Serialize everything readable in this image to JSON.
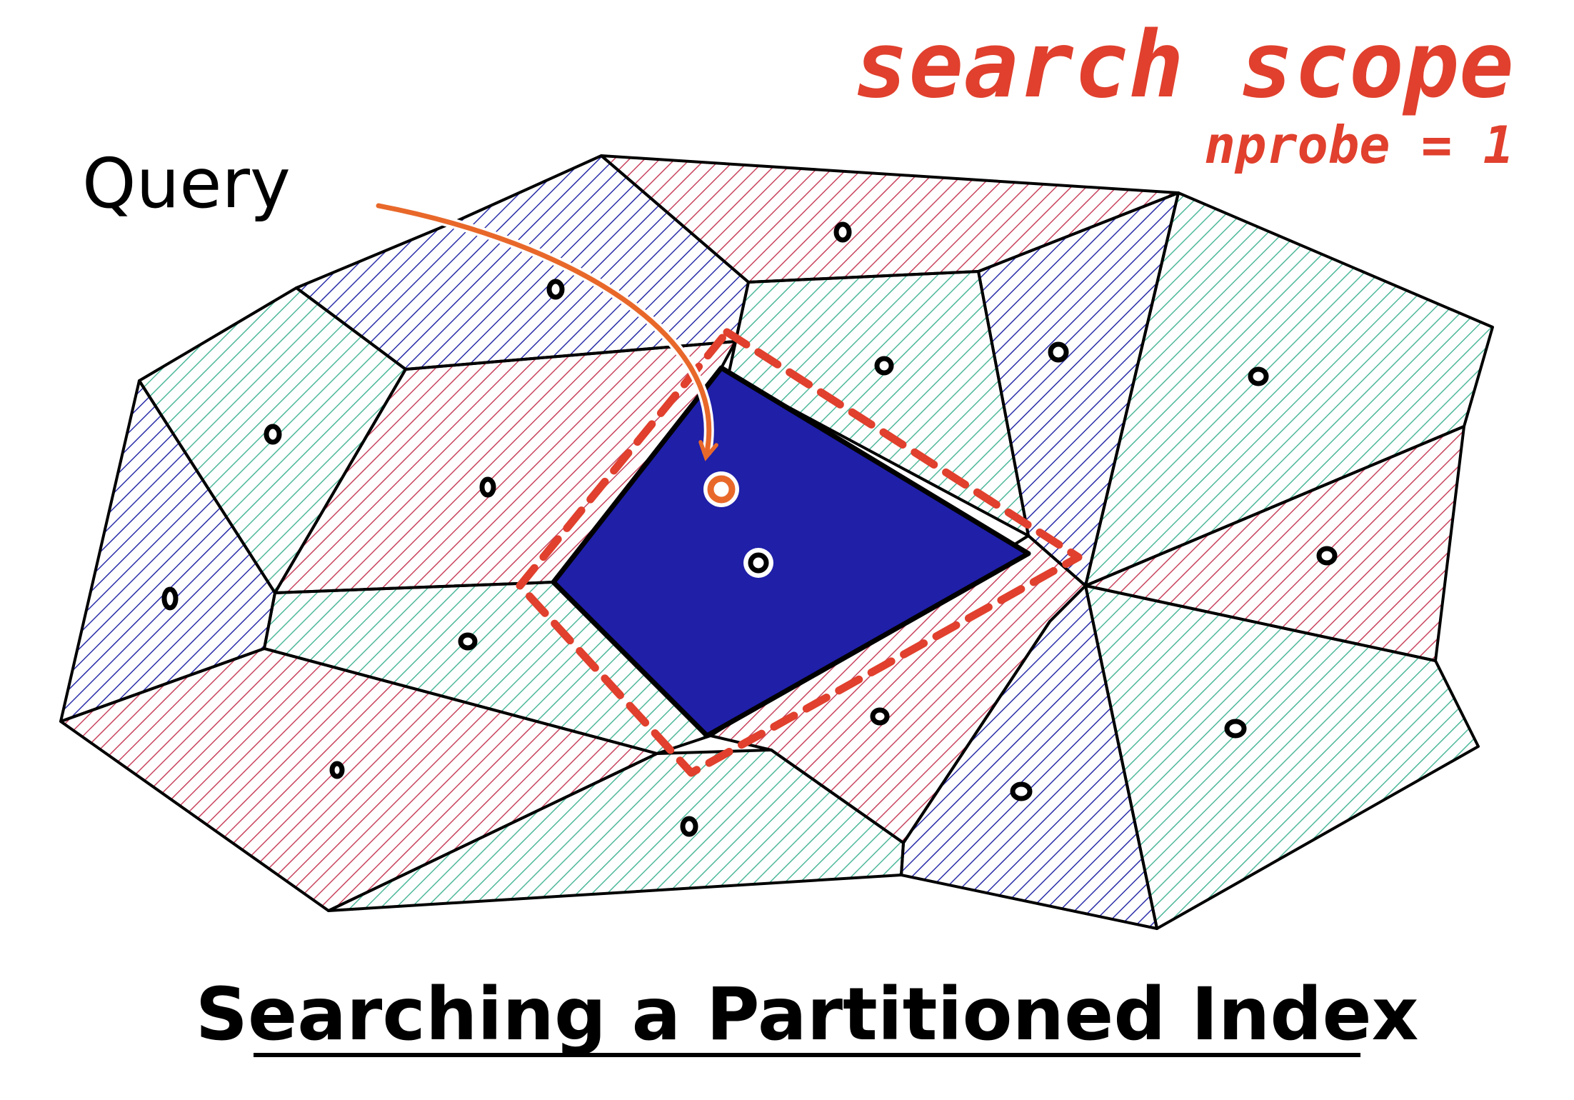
{
  "header": {
    "scope_label": "search scope",
    "nprobe_label": "nprobe = 1"
  },
  "query_label": "Query",
  "title": "Searching a Partitioned Index",
  "colors": {
    "green_hatch": "#4fb89b",
    "red_hatch": "#c8455f",
    "blue_hatch": "#2b2fa8",
    "selected_fill": "#1f1fa8",
    "scope_dash": "#e0402d",
    "arrow": "#e8682a",
    "outline": "#000000"
  },
  "icons": [
    "curved-arrow-icon",
    "query-point-icon",
    "centroid-icon"
  ]
}
